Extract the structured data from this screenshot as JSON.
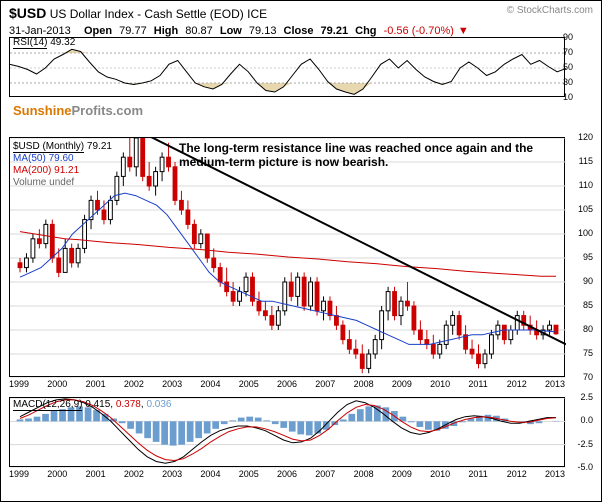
{
  "header": {
    "ticker": "$USD",
    "desc": "US Dollar Index - Cash Settle (EOD)",
    "exchange": "ICE",
    "attribution": "© StockCharts.com",
    "date": "31-Jan-2013",
    "open_label": "Open",
    "open": "79.77",
    "high_label": "High",
    "high": "80.87",
    "low_label": "Low",
    "low": "79.13",
    "close_label": "Close",
    "close": "79.21",
    "chg_label": "Chg",
    "chg": "-0.56 (-0.70%)",
    "chg_arrow": "▼"
  },
  "watermark": {
    "part1": "Sunshine",
    "part2": "Profits.com"
  },
  "annotation": "The long-term resistance line was reached once again and the medium-term picture is now bearish.",
  "rsi": {
    "type": "line",
    "label": "RSI(14)",
    "value": "49.32",
    "ylim": [
      10,
      90
    ],
    "yticks": [
      10,
      30,
      50,
      70,
      90
    ],
    "bands": [
      30,
      70
    ],
    "band_color": "#e8d8b0",
    "line_color": "#000000",
    "points": [
      55,
      52,
      48,
      42,
      50,
      62,
      68,
      75,
      72,
      58,
      45,
      38,
      35,
      30,
      28,
      30,
      33,
      40,
      55,
      60,
      45,
      30,
      25,
      22,
      28,
      42,
      55,
      45,
      30,
      20,
      18,
      25,
      40,
      55,
      62,
      48,
      32,
      22,
      18,
      15,
      22,
      38,
      55,
      62,
      50,
      60,
      48,
      38,
      32,
      28,
      32,
      50,
      58,
      50,
      40,
      45,
      55,
      62,
      68,
      55,
      60,
      52,
      45,
      49.32
    ]
  },
  "main": {
    "type": "candlestick",
    "labels": {
      "title": "$USD (Monthly)",
      "title_val": "79.21",
      "ma50_label": "MA(50)",
      "ma50_val": "79.60",
      "ma50_color": "#1a3fc9",
      "ma200_label": "MA(200)",
      "ma200_val": "91.21",
      "ma200_color": "#cc0000",
      "volume_label": "Volume undef",
      "volume_color": "#666666"
    },
    "ylim": [
      70,
      120
    ],
    "yticks": [
      70,
      75,
      80,
      85,
      90,
      95,
      100,
      105,
      110,
      115,
      120
    ],
    "grid_color": "#d8d8d8",
    "background_color": "#ffffff",
    "resistance_line": {
      "x1": 0.24,
      "y1": 121,
      "x2": 1.0,
      "y2": 77,
      "color": "#000000",
      "width": 2
    },
    "ma50": {
      "color": "#1a3fc9",
      "points": [
        91,
        92,
        93,
        95,
        97,
        100,
        102,
        104,
        106,
        108,
        108.5,
        108,
        107,
        106,
        104,
        101,
        98,
        95,
        92,
        90,
        89,
        88,
        87,
        86,
        86,
        85.5,
        85,
        84.5,
        84,
        83.5,
        83,
        82.5,
        82,
        81,
        80,
        79,
        78,
        77,
        77,
        77,
        77.5,
        78,
        78.5,
        79,
        79,
        79.5,
        80,
        80,
        80,
        80,
        79.8,
        79.6
      ]
    },
    "ma200": {
      "color": "#cc0000",
      "points": [
        100.5,
        100,
        99.5,
        99,
        98.8,
        98.5,
        98.2,
        98,
        97.8,
        97.5,
        97.2,
        97,
        96.8,
        96.5,
        96.2,
        96,
        95.8,
        95.5,
        95.2,
        95,
        94.8,
        94.5,
        94.2,
        94,
        93.8,
        93.5,
        93.2,
        93,
        92.8,
        92.5,
        92.2,
        92,
        91.8,
        91.6,
        91.4,
        91.2,
        91.21
      ]
    },
    "candles": [
      {
        "o": 94,
        "h": 95,
        "l": 92,
        "c": 93,
        "up": false
      },
      {
        "o": 93,
        "h": 96,
        "l": 92,
        "c": 95,
        "up": true
      },
      {
        "o": 95,
        "h": 100,
        "l": 94,
        "c": 99,
        "up": true
      },
      {
        "o": 99,
        "h": 101,
        "l": 97,
        "c": 98,
        "up": false
      },
      {
        "o": 98,
        "h": 103,
        "l": 97,
        "c": 102,
        "up": true
      },
      {
        "o": 102,
        "h": 103,
        "l": 94,
        "c": 95,
        "up": false
      },
      {
        "o": 95,
        "h": 97,
        "l": 91,
        "c": 92,
        "up": false
      },
      {
        "o": 92,
        "h": 99,
        "l": 92,
        "c": 97,
        "up": true
      },
      {
        "o": 97,
        "h": 98,
        "l": 93,
        "c": 94,
        "up": false
      },
      {
        "o": 94,
        "h": 98,
        "l": 93,
        "c": 97,
        "up": true
      },
      {
        "o": 97,
        "h": 104,
        "l": 96,
        "c": 103,
        "up": true
      },
      {
        "o": 103,
        "h": 108,
        "l": 101,
        "c": 107,
        "up": true
      },
      {
        "o": 107,
        "h": 109,
        "l": 104,
        "c": 105,
        "up": false
      },
      {
        "o": 105,
        "h": 107,
        "l": 102,
        "c": 103,
        "up": false
      },
      {
        "o": 103,
        "h": 108,
        "l": 102,
        "c": 107,
        "up": true
      },
      {
        "o": 107,
        "h": 113,
        "l": 106,
        "c": 112,
        "up": true
      },
      {
        "o": 112,
        "h": 117,
        "l": 110,
        "c": 116,
        "up": true
      },
      {
        "o": 116,
        "h": 120,
        "l": 113,
        "c": 114,
        "up": false
      },
      {
        "o": 114,
        "h": 121,
        "l": 112,
        "c": 120,
        "up": true
      },
      {
        "o": 120,
        "h": 120,
        "l": 111,
        "c": 112,
        "up": false
      },
      {
        "o": 112,
        "h": 115,
        "l": 109,
        "c": 110,
        "up": false
      },
      {
        "o": 110,
        "h": 114,
        "l": 108,
        "c": 113,
        "up": true
      },
      {
        "o": 113,
        "h": 117,
        "l": 111,
        "c": 116,
        "up": true
      },
      {
        "o": 116,
        "h": 119,
        "l": 113,
        "c": 114,
        "up": false
      },
      {
        "o": 114,
        "h": 115,
        "l": 106,
        "c": 107,
        "up": false
      },
      {
        "o": 107,
        "h": 109,
        "l": 104,
        "c": 105,
        "up": false
      },
      {
        "o": 105,
        "h": 107,
        "l": 101,
        "c": 102,
        "up": false
      },
      {
        "o": 102,
        "h": 103,
        "l": 97,
        "c": 98,
        "up": false
      },
      {
        "o": 98,
        "h": 101,
        "l": 97,
        "c": 100,
        "up": true
      },
      {
        "o": 100,
        "h": 100,
        "l": 94,
        "c": 95,
        "up": false
      },
      {
        "o": 95,
        "h": 97,
        "l": 92,
        "c": 93,
        "up": false
      },
      {
        "o": 93,
        "h": 94,
        "l": 89,
        "c": 90,
        "up": false
      },
      {
        "o": 90,
        "h": 93,
        "l": 87,
        "c": 88,
        "up": false
      },
      {
        "o": 88,
        "h": 90,
        "l": 85,
        "c": 86,
        "up": false
      },
      {
        "o": 86,
        "h": 89,
        "l": 85,
        "c": 88,
        "up": true
      },
      {
        "o": 88,
        "h": 92,
        "l": 87,
        "c": 91,
        "up": true
      },
      {
        "o": 91,
        "h": 92,
        "l": 85,
        "c": 86,
        "up": false
      },
      {
        "o": 86,
        "h": 88,
        "l": 83,
        "c": 84,
        "up": false
      },
      {
        "o": 84,
        "h": 86,
        "l": 82,
        "c": 83,
        "up": false
      },
      {
        "o": 83,
        "h": 85,
        "l": 80,
        "c": 81,
        "up": false
      },
      {
        "o": 81,
        "h": 85,
        "l": 80,
        "c": 84,
        "up": true
      },
      {
        "o": 84,
        "h": 91,
        "l": 83,
        "c": 90,
        "up": true
      },
      {
        "o": 90,
        "h": 92,
        "l": 86,
        "c": 87,
        "up": false
      },
      {
        "o": 87,
        "h": 92,
        "l": 85,
        "c": 91,
        "up": true
      },
      {
        "o": 91,
        "h": 92,
        "l": 84,
        "c": 85,
        "up": false
      },
      {
        "o": 85,
        "h": 91,
        "l": 84,
        "c": 90,
        "up": true
      },
      {
        "o": 90,
        "h": 91,
        "l": 83,
        "c": 84,
        "up": false
      },
      {
        "o": 84,
        "h": 87,
        "l": 82,
        "c": 86,
        "up": true
      },
      {
        "o": 86,
        "h": 87,
        "l": 82,
        "c": 83,
        "up": false
      },
      {
        "o": 83,
        "h": 85,
        "l": 80,
        "c": 81,
        "up": false
      },
      {
        "o": 81,
        "h": 82,
        "l": 77,
        "c": 78,
        "up": false
      },
      {
        "o": 78,
        "h": 80,
        "l": 75,
        "c": 76,
        "up": false
      },
      {
        "o": 76,
        "h": 78,
        "l": 74,
        "c": 75,
        "up": false
      },
      {
        "o": 75,
        "h": 77,
        "l": 71,
        "c": 72,
        "up": false
      },
      {
        "o": 72,
        "h": 76,
        "l": 71,
        "c": 75,
        "up": true
      },
      {
        "o": 75,
        "h": 79,
        "l": 74,
        "c": 78,
        "up": true
      },
      {
        "o": 78,
        "h": 85,
        "l": 76,
        "c": 84,
        "up": true
      },
      {
        "o": 84,
        "h": 89,
        "l": 82,
        "c": 88,
        "up": true
      },
      {
        "o": 88,
        "h": 89,
        "l": 82,
        "c": 83,
        "up": false
      },
      {
        "o": 83,
        "h": 87,
        "l": 81,
        "c": 86,
        "up": true
      },
      {
        "o": 86,
        "h": 90,
        "l": 84,
        "c": 85,
        "up": false
      },
      {
        "o": 85,
        "h": 86,
        "l": 79,
        "c": 80,
        "up": false
      },
      {
        "o": 80,
        "h": 82,
        "l": 77,
        "c": 78,
        "up": false
      },
      {
        "o": 78,
        "h": 80,
        "l": 76,
        "c": 77,
        "up": false
      },
      {
        "o": 77,
        "h": 79,
        "l": 74,
        "c": 75,
        "up": false
      },
      {
        "o": 75,
        "h": 78,
        "l": 74,
        "c": 77,
        "up": true
      },
      {
        "o": 77,
        "h": 82,
        "l": 76,
        "c": 81,
        "up": true
      },
      {
        "o": 81,
        "h": 84,
        "l": 79,
        "c": 83,
        "up": true
      },
      {
        "o": 83,
        "h": 84,
        "l": 78,
        "c": 79,
        "up": false
      },
      {
        "o": 79,
        "h": 81,
        "l": 75,
        "c": 76,
        "up": false
      },
      {
        "o": 76,
        "h": 78,
        "l": 74,
        "c": 75,
        "up": false
      },
      {
        "o": 75,
        "h": 77,
        "l": 72,
        "c": 73,
        "up": false
      },
      {
        "o": 73,
        "h": 76,
        "l": 72,
        "c": 75,
        "up": true
      },
      {
        "o": 75,
        "h": 80,
        "l": 74,
        "c": 79,
        "up": true
      },
      {
        "o": 79,
        "h": 82,
        "l": 78,
        "c": 81,
        "up": true
      },
      {
        "o": 81,
        "h": 81,
        "l": 77,
        "c": 78,
        "up": false
      },
      {
        "o": 78,
        "h": 81,
        "l": 77,
        "c": 80,
        "up": true
      },
      {
        "o": 80,
        "h": 84,
        "l": 79,
        "c": 83,
        "up": true
      },
      {
        "o": 83,
        "h": 84,
        "l": 80,
        "c": 81,
        "up": false
      },
      {
        "o": 81,
        "h": 83,
        "l": 79,
        "c": 80,
        "up": false
      },
      {
        "o": 80,
        "h": 82,
        "l": 78,
        "c": 79,
        "up": false
      },
      {
        "o": 79,
        "h": 81,
        "l": 78,
        "c": 80,
        "up": true
      },
      {
        "o": 80,
        "h": 82,
        "l": 79,
        "c": 81,
        "up": true
      },
      {
        "o": 81,
        "h": 81,
        "l": 79,
        "c": 79.21,
        "up": false
      }
    ],
    "years": [
      "1999",
      "2000",
      "2001",
      "2002",
      "2003",
      "2004",
      "2005",
      "2006",
      "2007",
      "2008",
      "2009",
      "2010",
      "2011",
      "2012",
      "2013"
    ]
  },
  "macd": {
    "type": "macd",
    "label": "MACD(12,26,9)",
    "value": "0.415",
    "signal_value": "0.378",
    "hist_value": "0.036",
    "line_color": "#000000",
    "signal_color": "#cc0000",
    "hist_color": "#6b9dcf",
    "ylim": [
      -5,
      2.5
    ],
    "yticks": [
      -5.0,
      -2.5,
      0.0,
      2.5
    ],
    "histogram": [
      0.2,
      0.3,
      0.5,
      0.8,
      1.1,
      1.3,
      1.5,
      1.6,
      1.5,
      1.2,
      0.8,
      0.3,
      -0.2,
      -0.8,
      -1.3,
      -1.8,
      -2.2,
      -2.5,
      -2.6,
      -2.5,
      -2.2,
      -1.8,
      -1.3,
      -0.8,
      -0.3,
      0.1,
      0.4,
      0.5,
      0.4,
      0.1,
      -0.3,
      -0.7,
      -1.1,
      -1.4,
      -1.5,
      -1.3,
      -0.9,
      -0.4,
      0.2,
      0.8,
      1.3,
      1.6,
      1.7,
      1.5,
      1.1,
      0.5,
      -0.1,
      -0.6,
      -0.9,
      -1.0,
      -0.8,
      -0.5,
      -0.1,
      0.3,
      0.6,
      0.7,
      0.6,
      0.3,
      0.0,
      -0.2,
      -0.3,
      -0.2,
      0.0,
      0.04
    ],
    "macd_line": [
      0.5,
      1.0,
      1.5,
      2.0,
      2.3,
      2.4,
      2.3,
      2.0,
      1.5,
      0.8,
      0.0,
      -1.0,
      -2.0,
      -3.0,
      -3.8,
      -4.3,
      -4.5,
      -4.3,
      -3.8,
      -3.0,
      -2.2,
      -1.5,
      -1.0,
      -0.7,
      -0.5,
      -0.5,
      -0.7,
      -1.0,
      -1.5,
      -2.0,
      -2.3,
      -2.2,
      -1.8,
      -1.0,
      0.0,
      1.0,
      1.8,
      2.2,
      2.0,
      1.5,
      0.8,
      0.0,
      -0.7,
      -1.2,
      -1.4,
      -1.2,
      -0.8,
      -0.3,
      0.2,
      0.5,
      0.6,
      0.5,
      0.3,
      0.0,
      -0.2,
      -0.2,
      0.0,
      0.2,
      0.4,
      0.415
    ],
    "signal_line": [
      0.3,
      0.7,
      1.2,
      1.7,
      2.1,
      2.3,
      2.3,
      2.1,
      1.7,
      1.1,
      0.4,
      -0.5,
      -1.4,
      -2.3,
      -3.1,
      -3.7,
      -4.1,
      -4.2,
      -4.0,
      -3.5,
      -2.9,
      -2.2,
      -1.6,
      -1.1,
      -0.8,
      -0.6,
      -0.6,
      -0.8,
      -1.1,
      -1.5,
      -1.9,
      -2.1,
      -2.0,
      -1.5,
      -0.8,
      0.1,
      0.9,
      1.5,
      1.8,
      1.7,
      1.3,
      0.7,
      0.0,
      -0.6,
      -1.0,
      -1.1,
      -0.9,
      -0.5,
      -0.1,
      0.2,
      0.4,
      0.5,
      0.4,
      0.2,
      0.0,
      -0.1,
      -0.1,
      0.1,
      0.3,
      0.378
    ]
  }
}
